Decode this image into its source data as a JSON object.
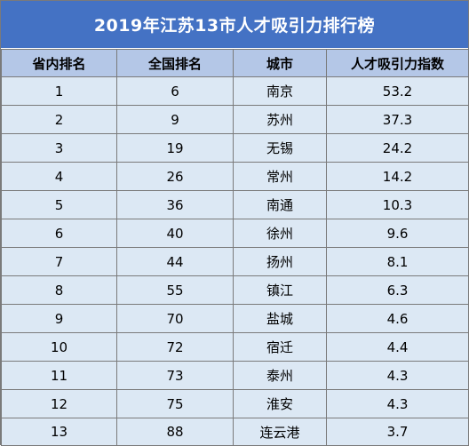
{
  "title": "2019年江苏13市人才吸引力排行榜",
  "columns": [
    "省内排名",
    "全国排名",
    "城市",
    "人才吸引力指数"
  ],
  "rows": [
    [
      "1",
      "6",
      "南京",
      "53.2"
    ],
    [
      "2",
      "9",
      "苏州",
      "37.3"
    ],
    [
      "3",
      "19",
      "无锡",
      "24.2"
    ],
    [
      "4",
      "26",
      "常州",
      "14.2"
    ],
    [
      "5",
      "36",
      "南通",
      "10.3"
    ],
    [
      "6",
      "40",
      "徐州",
      "9.6"
    ],
    [
      "7",
      "44",
      "扬州",
      "8.1"
    ],
    [
      "8",
      "55",
      "镇江",
      "6.3"
    ],
    [
      "9",
      "70",
      "盐城",
      "4.6"
    ],
    [
      "10",
      "72",
      "宿迁",
      "4.4"
    ],
    [
      "11",
      "73",
      "泰州",
      "4.3"
    ],
    [
      "12",
      "75",
      "淮安",
      "4.3"
    ],
    [
      "13",
      "88",
      "连云港",
      "3.7"
    ]
  ],
  "colors": {
    "title_bg": "#4472c4",
    "header_bg": "#b4c7e7",
    "row_bg": "#dce8f4",
    "border": "#7a7a7a"
  }
}
